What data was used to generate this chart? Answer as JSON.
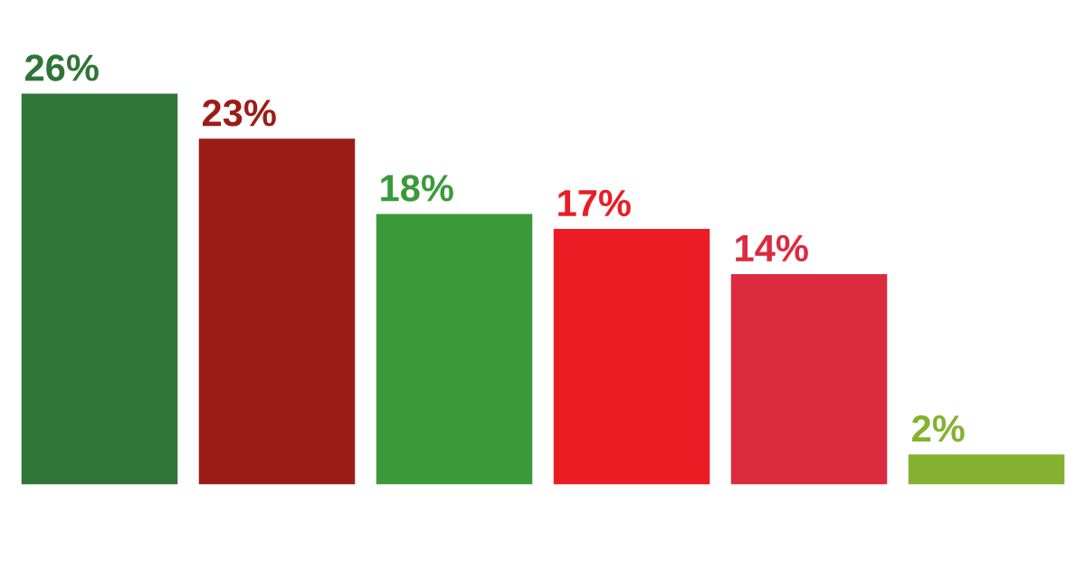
{
  "chart_data": {
    "type": "bar",
    "categories": [
      null,
      null,
      null,
      null,
      null,
      null
    ],
    "values": [
      26,
      23,
      18,
      17,
      14,
      2
    ],
    "colors": [
      "#2e7537",
      "#9b1c17",
      "#3a9a3a",
      "#ec1c24",
      "#dc2a3e",
      "#84b230"
    ],
    "value_labels": [
      "26%",
      "23%",
      "18%",
      "17%",
      "14%",
      "2%"
    ],
    "grid": false,
    "legend": false
  }
}
